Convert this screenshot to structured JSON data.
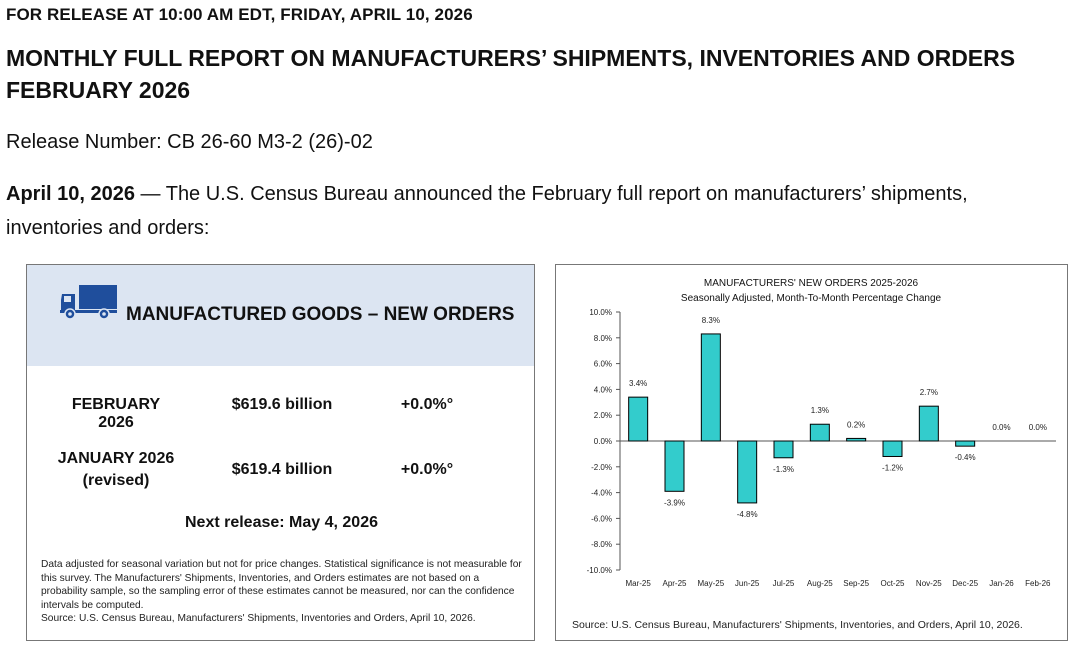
{
  "header": {
    "release_line": "FOR RELEASE AT 10:00 AM EDT, FRIDAY, APRIL 10, 2026",
    "title_line1": "MONTHLY FULL REPORT ON MANUFACTURERS’ SHIPMENTS, INVENTORIES AND ORDERS",
    "title_line2": "FEBRUARY 2026",
    "release_number": "Release Number: CB 26-60 M3-2 (26)-02",
    "intro_date": "April 10, 2026",
    "intro_text": " — The U.S. Census Bureau announced the February full report on manufacturers’ shipments, inventories and orders:"
  },
  "summary_panel": {
    "title": "MANUFACTURED GOODS – NEW ORDERS",
    "icon": "truck-icon",
    "accent_color": "#1f4e9c",
    "header_bg": "#dce5f2",
    "rows": [
      {
        "period": "FEBRUARY 2026",
        "period_note": "",
        "value": "$619.6 billion",
        "change": "+0.0%°"
      },
      {
        "period": "JANUARY 2026",
        "period_note": "(revised)",
        "value": "$619.4 billion",
        "change": "+0.0%°"
      }
    ],
    "next_release": "Next release: May 4, 2026",
    "footnote": "Data adjusted for seasonal variation but not for price changes. Statistical significance is not measurable for this survey.  The Manufacturers' Shipments, Inventories, and Orders estimates are not based on a probability sample, so the sampling error of these estimates cannot be measured, nor can the confidence intervals be computed.",
    "source": "Source: U.S. Census Bureau, Manufacturers' Shipments, Inventories and Orders, April 10, 2026."
  },
  "chart_data": {
    "type": "bar",
    "title": "MANUFACTURERS' NEW ORDERS 2025-2026",
    "subtitle": "Seasonally Adjusted,  Month-To-Month Percentage Change",
    "categories": [
      "Mar-25",
      "Apr-25",
      "May-25",
      "Jun-25",
      "Jul-25",
      "Aug-25",
      "Sep-25",
      "Oct-25",
      "Nov-25",
      "Dec-25",
      "Jan-26",
      "Feb-26"
    ],
    "values": [
      3.4,
      -3.9,
      8.3,
      -4.8,
      -1.3,
      1.3,
      0.2,
      -1.2,
      2.7,
      -0.4,
      0.0,
      0.0
    ],
    "data_labels": [
      "3.4%",
      "-3.9%",
      "8.3%",
      "-4.8%",
      "-1.3%",
      "1.3%",
      "0.2%",
      "-1.2%",
      "2.7%",
      "-0.4%",
      "0.0%",
      "0.0%"
    ],
    "ylim": [
      -10,
      10
    ],
    "yticks": [
      10,
      8,
      6,
      4,
      2,
      0,
      -2,
      -4,
      -6,
      -8,
      -10
    ],
    "ytick_labels": [
      "10.0%",
      "8.0%",
      "6.0%",
      "4.0%",
      "2.0%",
      "0.0%",
      "-2.0%",
      "-4.0%",
      "-6.0%",
      "-8.0%",
      "-10.0%"
    ],
    "xlabel": "",
    "ylabel": "",
    "grid": false,
    "bar_color": "#33cccc",
    "source": "Source: U.S. Census Bureau, Manufacturers' Shipments, Inventories, and Orders, April 10, 2026."
  }
}
